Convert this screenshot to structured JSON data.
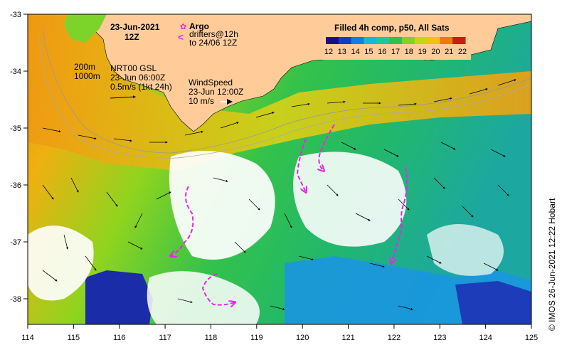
{
  "map": {
    "date_label": "23-Jun-2021",
    "time_label": "12Z",
    "argo_label": "Argo",
    "drifters_label_1": "drifters@12h",
    "drifters_label_2": "to 24/06 12Z",
    "legend_title": "Filled 4h comp, p50, All Sats",
    "legend_ticks": [
      "12",
      "13",
      "14",
      "15",
      "16",
      "17",
      "18",
      "19",
      "20",
      "21",
      "22"
    ],
    "legend_colors": [
      "#1a0a8c",
      "#0b3fc7",
      "#0f7fe6",
      "#14b8d6",
      "#1bc9a0",
      "#2fc24a",
      "#7fd41f",
      "#c6d516",
      "#f2c20d",
      "#ec7a0b",
      "#c81e0a"
    ],
    "iso_200": "200m",
    "iso_1000": "1000m",
    "current_1": "NRT00 GSL",
    "current_2": "23-Jun 06:00Z",
    "current_3": "0.5m/s (1kt 24h)",
    "wind_1": "WindSpeed",
    "wind_2": "23-Jun 12:00Z",
    "wind_3": "10 m/s",
    "credit": "© IMOS 26-Jun-2021 12:22 Hobart",
    "lon_labels": [
      "114",
      "115",
      "116",
      "117",
      "118",
      "119",
      "120",
      "121",
      "122",
      "123",
      "124",
      "125"
    ],
    "lat_labels": [
      "-33",
      "-34",
      "-35",
      "-36",
      "-37",
      "-38"
    ],
    "land_color": "#ffcc99",
    "drifter_color": "#ee22ee"
  }
}
